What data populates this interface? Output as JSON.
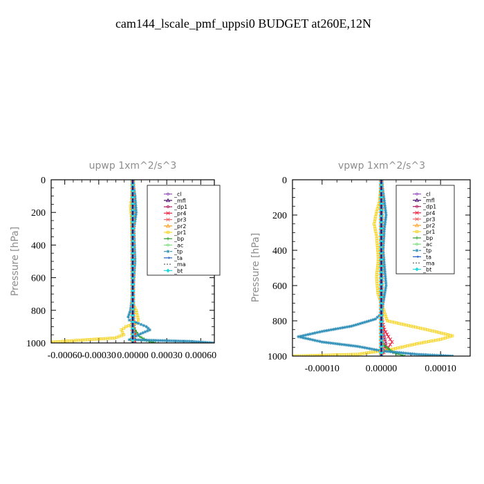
{
  "figure_title": "cam144_lscale_pmf_uppsi0  BUDGET at260E,12N",
  "legend_labels": [
    "_cl",
    "_mfl",
    "_dp1",
    "_pr4",
    "_pr3",
    "_pr2",
    "_pr1",
    "_bp",
    "_ac",
    "_tp",
    "_ta",
    "_ma",
    "_bt"
  ],
  "chart_data": [
    {
      "type": "line",
      "title": "upwp   1xm^2/s^3",
      "xlabel": "",
      "ylabel": "Pressure [hPa]",
      "xlim": [
        -0.00072,
        0.00072
      ],
      "ylim": [
        1000,
        0
      ],
      "xticks": [
        -0.0006,
        -0.0003,
        0,
        0.0003,
        0.0006
      ],
      "xtick_labels": [
        "-0.00060",
        "-0.00030",
        "0.00000",
        "0.00030",
        "0.00060"
      ],
      "yticks": [
        0,
        200,
        400,
        600,
        800,
        1000
      ],
      "ytick_labels": [
        "0",
        "200",
        "400",
        "600",
        "800",
        "1000"
      ],
      "legend_position": "top-right",
      "series": [
        {
          "name": "_cl",
          "color": "#9a52c4",
          "dash": "",
          "marker": "circle",
          "points": [
            [
              0,
              0
            ],
            [
              0,
              1000
            ]
          ]
        },
        {
          "name": "_mfl",
          "color": "#4b0a6e",
          "dash": "",
          "marker": "tri",
          "points": [
            [
              0,
              0
            ],
            [
              0,
              1000
            ]
          ]
        },
        {
          "name": "_dp1",
          "color": "#b0185e",
          "dash": "",
          "marker": "circle",
          "points": [
            [
              0,
              0
            ],
            [
              0,
              500
            ],
            [
              5e-06,
              900
            ],
            [
              1.5e-05,
              960
            ],
            [
              2e-05,
              1000
            ]
          ]
        },
        {
          "name": "_pr4",
          "color": "#f01c3c",
          "dash": "",
          "marker": "cross",
          "points": [
            [
              0,
              0
            ],
            [
              0,
              800
            ],
            [
              1e-05,
              900
            ],
            [
              2e-05,
              950
            ],
            [
              1e-05,
              1000
            ]
          ]
        },
        {
          "name": "_pr3",
          "color": "#f06060",
          "dash": "",
          "marker": "cross",
          "points": [
            [
              0,
              0
            ],
            [
              0,
              1000
            ]
          ]
        },
        {
          "name": "_pr2",
          "color": "#ffa020",
          "dash": "",
          "marker": "tri",
          "points": [
            [
              0,
              0
            ],
            [
              0,
              1000
            ]
          ]
        },
        {
          "name": "_pr1",
          "color": "#f6d21a",
          "dash": "",
          "marker": "square",
          "points": [
            [
              0,
              0
            ],
            [
              -1e-05,
              120
            ],
            [
              -2e-05,
              160
            ],
            [
              -1e-05,
              250
            ],
            [
              0,
              500
            ],
            [
              0,
              760
            ],
            [
              3e-05,
              800
            ],
            [
              5e-05,
              860
            ],
            [
              3e-05,
              880
            ],
            [
              -6e-05,
              900
            ],
            [
              -0.0001,
              920
            ],
            [
              -8e-05,
              950
            ],
            [
              -0.00016,
              970
            ],
            [
              -0.0004,
              980
            ],
            [
              -0.00072,
              995
            ],
            [
              -0.00072,
              1000
            ]
          ]
        },
        {
          "name": "_bp",
          "color": "#2a9e2a",
          "dash": "",
          "marker": "plus",
          "points": [
            [
              0,
              0
            ],
            [
              0,
              880
            ],
            [
              2e-05,
              920
            ],
            [
              6e-05,
              960
            ],
            [
              0.00012,
              985
            ],
            [
              0.0002,
              1000
            ]
          ]
        },
        {
          "name": "_ac",
          "color": "#7be07b",
          "dash": "",
          "marker": "circle",
          "points": [
            [
              0,
              0
            ],
            [
              0,
              1000
            ]
          ]
        },
        {
          "name": "_tp",
          "color": "#2f8fb8",
          "dash": "4 2 1 2",
          "marker": "star",
          "points": [
            [
              0,
              0
            ],
            [
              2e-05,
              100
            ],
            [
              3e-05,
              200
            ],
            [
              1e-05,
              300
            ],
            [
              2e-05,
              500
            ],
            [
              0,
              700
            ],
            [
              -2e-05,
              800
            ],
            [
              -4e-05,
              840
            ],
            [
              -3e-05,
              860
            ],
            [
              5e-05,
              880
            ],
            [
              0.00012,
              900
            ],
            [
              0.00015,
              920
            ],
            [
              5e-05,
              950
            ],
            [
              -3e-05,
              980
            ],
            [
              0.0005,
              990
            ],
            [
              0.00072,
              1000
            ]
          ]
        },
        {
          "name": "_ta",
          "color": "#1f5ec8",
          "dash": "",
          "marker": "arrow",
          "points": [
            [
              0,
              0
            ],
            [
              0,
              1000
            ]
          ]
        },
        {
          "name": "_ma",
          "color": "#666666",
          "dash": "2 2",
          "marker": "",
          "points": [
            [
              0,
              0
            ],
            [
              0,
              1000
            ]
          ]
        },
        {
          "name": "_bt",
          "color": "#22d8e0",
          "dash": "",
          "marker": "diamond",
          "points": [
            [
              0,
              0
            ],
            [
              0,
              1000
            ]
          ]
        }
      ]
    },
    {
      "type": "line",
      "title": "vpwp   1xm^2/s^3",
      "xlabel": "",
      "ylabel": "Pressure [hPa]",
      "xlim": [
        -0.00015,
        0.00015
      ],
      "ylim": [
        1000,
        0
      ],
      "xticks": [
        -0.0001,
        0,
        0.0001
      ],
      "xtick_labels": [
        "-0.00010",
        "0.00000",
        "0.00010"
      ],
      "yticks": [
        0,
        200,
        400,
        600,
        800,
        1000
      ],
      "ytick_labels": [
        "0",
        "200",
        "400",
        "600",
        "800",
        "1000"
      ],
      "legend_position": "top-right",
      "series": [
        {
          "name": "_cl",
          "color": "#9a52c4",
          "dash": "",
          "marker": "circle",
          "points": [
            [
              0,
              0
            ],
            [
              0,
              1000
            ]
          ]
        },
        {
          "name": "_mfl",
          "color": "#4b0a6e",
          "dash": "",
          "marker": "tri",
          "points": [
            [
              0,
              0
            ],
            [
              0,
              1000
            ]
          ]
        },
        {
          "name": "_dp1",
          "color": "#b0185e",
          "dash": "",
          "marker": "circle",
          "points": [
            [
              0,
              0
            ],
            [
              0,
              820
            ],
            [
              4e-06,
              880
            ],
            [
              8e-06,
              930
            ],
            [
              4e-06,
              970
            ],
            [
              0,
              1000
            ]
          ]
        },
        {
          "name": "_pr4",
          "color": "#f01c3c",
          "dash": "",
          "marker": "cross",
          "points": [
            [
              0,
              0
            ],
            [
              0,
              780
            ],
            [
              5e-06,
              850
            ],
            [
              1.2e-05,
              890
            ],
            [
              1.8e-05,
              920
            ],
            [
              1.2e-05,
              950
            ],
            [
              4e-06,
              980
            ],
            [
              0,
              1000
            ]
          ]
        },
        {
          "name": "_pr3",
          "color": "#f06060",
          "dash": "",
          "marker": "cross",
          "points": [
            [
              0,
              0
            ],
            [
              0,
              1000
            ]
          ]
        },
        {
          "name": "_pr2",
          "color": "#ffa020",
          "dash": "",
          "marker": "tri",
          "points": [
            [
              0,
              0
            ],
            [
              0,
              1000
            ]
          ]
        },
        {
          "name": "_pr1",
          "color": "#f6d21a",
          "dash": "",
          "marker": "square",
          "points": [
            [
              0,
              0
            ],
            [
              -3e-06,
              120
            ],
            [
              -8e-06,
              180
            ],
            [
              -1.2e-05,
              250
            ],
            [
              -8e-06,
              320
            ],
            [
              -5e-06,
              450
            ],
            [
              -8e-06,
              550
            ],
            [
              -6e-06,
              640
            ],
            [
              0,
              700
            ],
            [
              1e-05,
              800
            ],
            [
              5e-05,
              830
            ],
            [
              9e-05,
              860
            ],
            [
              0.00012,
              885
            ],
            [
              0.0001,
              905
            ],
            [
              6e-05,
              930
            ],
            [
              2e-05,
              960
            ],
            [
              -4e-05,
              990
            ],
            [
              -0.00015,
              1000
            ]
          ]
        },
        {
          "name": "_bp",
          "color": "#2a9e2a",
          "dash": "",
          "marker": "plus",
          "points": [
            [
              0,
              0
            ],
            [
              0,
              900
            ],
            [
              5e-06,
              940
            ],
            [
              2e-05,
              980
            ],
            [
              4e-05,
              1000
            ]
          ]
        },
        {
          "name": "_ac",
          "color": "#7be07b",
          "dash": "",
          "marker": "circle",
          "points": [
            [
              0,
              0
            ],
            [
              0,
              1000
            ]
          ]
        },
        {
          "name": "_tp",
          "color": "#2f8fb8",
          "dash": "4 2 1 2",
          "marker": "star",
          "points": [
            [
              0,
              0
            ],
            [
              5e-06,
              120
            ],
            [
              8e-06,
              200
            ],
            [
              5e-06,
              280
            ],
            [
              3e-06,
              400
            ],
            [
              8e-06,
              600
            ],
            [
              0,
              760
            ],
            [
              -1e-05,
              790
            ],
            [
              -5e-05,
              830
            ],
            [
              -0.0001,
              860
            ],
            [
              -0.00014,
              890
            ],
            [
              -0.0001,
              920
            ],
            [
              -4e-05,
              945
            ],
            [
              0,
              970
            ],
            [
              6e-05,
              990
            ],
            [
              0.00012,
              1000
            ]
          ]
        },
        {
          "name": "_ta",
          "color": "#1f5ec8",
          "dash": "",
          "marker": "arrow",
          "points": [
            [
              0,
              0
            ],
            [
              0,
              1000
            ]
          ]
        },
        {
          "name": "_ma",
          "color": "#666666",
          "dash": "2 2",
          "marker": "",
          "points": [
            [
              0,
              0
            ],
            [
              0,
              1000
            ]
          ]
        },
        {
          "name": "_bt",
          "color": "#22d8e0",
          "dash": "",
          "marker": "diamond",
          "points": [
            [
              0,
              0
            ],
            [
              0,
              1000
            ]
          ]
        }
      ]
    }
  ]
}
